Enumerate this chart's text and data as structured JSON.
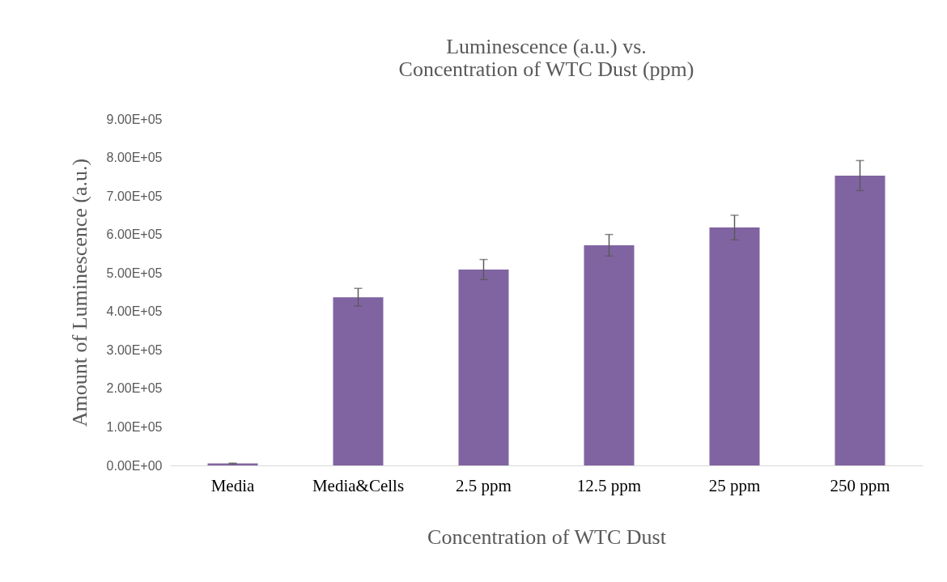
{
  "chart_data": {
    "type": "bar",
    "title": [
      "Luminescence (a.u.) vs.",
      "Concentration of WTC Dust (ppm)"
    ],
    "xlabel": "Concentration of WTC Dust",
    "ylabel": "Amount of Luminescence (a.u.)",
    "categories": [
      "Media",
      "Media&Cells",
      "2.5 ppm",
      "12.5 ppm",
      "25 ppm",
      "250 ppm"
    ],
    "values": [
      5000,
      437000,
      509000,
      572000,
      618000,
      753000
    ],
    "errors": [
      1000,
      23000,
      26000,
      28000,
      32000,
      39000
    ],
    "color": "#8064a2",
    "ylim": [
      0,
      900000
    ],
    "yticks": [
      {
        "value": 0,
        "label": "0.00E+00"
      },
      {
        "value": 100000,
        "label": "1.00E+05"
      },
      {
        "value": 200000,
        "label": "2.00E+05"
      },
      {
        "value": 300000,
        "label": "3.00E+05"
      },
      {
        "value": 400000,
        "label": "4.00E+05"
      },
      {
        "value": 500000,
        "label": "5.00E+05"
      },
      {
        "value": 600000,
        "label": "6.00E+05"
      },
      {
        "value": 700000,
        "label": "7.00E+05"
      },
      {
        "value": 800000,
        "label": "8.00E+05"
      },
      {
        "value": 900000,
        "label": "9.00E+05"
      }
    ],
    "grid": false
  }
}
